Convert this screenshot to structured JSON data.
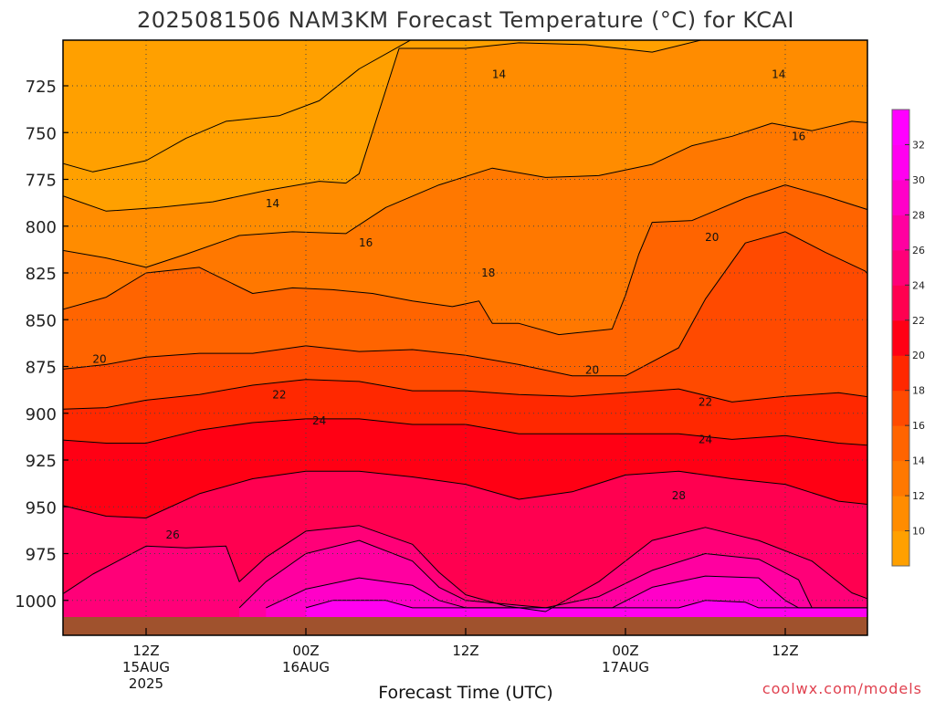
{
  "chart_data": {
    "type": "contour",
    "title": "2025081506 NAM3KM Forecast Temperature (°C) for KCAI",
    "xlabel": "Forecast Time (UTC)",
    "ylabel": "",
    "y_scale": "pressure (hPa), reversed",
    "ylim": [
      1025,
      700
    ],
    "y_ticks": [
      725,
      750,
      775,
      800,
      825,
      850,
      875,
      900,
      925,
      950,
      975,
      1000
    ],
    "x_ticks": [
      {
        "time": "12Z 15AUG 2025",
        "line1": "12Z",
        "line2": "15AUG",
        "line3": "2025"
      },
      {
        "time": "00Z 16AUG",
        "line1": "00Z",
        "line2": "16AUG",
        "line3": ""
      },
      {
        "time": "12Z 16AUG",
        "line1": "12Z",
        "line2": "",
        "line3": ""
      },
      {
        "time": "00Z 17AUG",
        "line1": "00Z",
        "line2": "17AUG",
        "line3": ""
      },
      {
        "time": "12Z 17AUG",
        "line1": "12Z",
        "line2": "",
        "line3": ""
      }
    ],
    "grid": true,
    "colorbar": {
      "ticks": [
        10,
        12,
        14,
        16,
        18,
        20,
        22,
        24,
        26,
        28,
        30,
        32
      ],
      "colors": [
        "#ffa000",
        "#ff8c00",
        "#ff7800",
        "#ff6400",
        "#ff4a00",
        "#ff2800",
        "#ff0014",
        "#ff0050",
        "#ff0078",
        "#ff00a0",
        "#ff00c8",
        "#ff00f0",
        "#ff00ff"
      ]
    },
    "contour_labels": [
      {
        "value": "14",
        "x_hours": 9.5,
        "pressure": 788
      },
      {
        "value": "14",
        "x_hours": 26.5,
        "pressure": 719
      },
      {
        "value": "14",
        "x_hours": 47.5,
        "pressure": 719
      },
      {
        "value": "16",
        "x_hours": 16.5,
        "pressure": 809
      },
      {
        "value": "16",
        "x_hours": 49,
        "pressure": 752
      },
      {
        "value": "18",
        "x_hours": 25.7,
        "pressure": 825
      },
      {
        "value": "20",
        "x_hours": -3.5,
        "pressure": 871
      },
      {
        "value": "20",
        "x_hours": 33.5,
        "pressure": 877
      },
      {
        "value": "20",
        "x_hours": 42.5,
        "pressure": 806
      },
      {
        "value": "22",
        "x_hours": 10,
        "pressure": 890
      },
      {
        "value": "22",
        "x_hours": 42,
        "pressure": 894
      },
      {
        "value": "24",
        "x_hours": 13,
        "pressure": 904
      },
      {
        "value": "24",
        "x_hours": 42,
        "pressure": 914
      },
      {
        "value": "26",
        "x_hours": 2,
        "pressure": 965
      },
      {
        "value": "28",
        "x_hours": 40,
        "pressure": 944
      }
    ],
    "series": [
      {
        "min_value": 10,
        "color": "#ffa000",
        "boundary": [
          [
            -7,
            700
          ],
          [
            -7,
            765
          ],
          [
            -4,
            771
          ],
          [
            0,
            765
          ],
          [
            3,
            753
          ],
          [
            6,
            744
          ],
          [
            10,
            741
          ],
          [
            13,
            733
          ],
          [
            16,
            716
          ],
          [
            20,
            700
          ]
        ]
      },
      {
        "min_value": 12,
        "color": "#ff8c00",
        "boundary": [
          [
            -7,
            700
          ],
          [
            -7,
            782
          ],
          [
            -3,
            792
          ],
          [
            1,
            790
          ],
          [
            5,
            787
          ],
          [
            9,
            781
          ],
          [
            13,
            776
          ],
          [
            15,
            777
          ],
          [
            16,
            772
          ],
          [
            19,
            705
          ],
          [
            24,
            705
          ],
          [
            28,
            702
          ],
          [
            33,
            703
          ],
          [
            38,
            707
          ],
          [
            42,
            700
          ]
        ]
      },
      {
        "min_value": 14,
        "color": "#ff7800",
        "boundary": [
          [
            -7,
            700
          ],
          [
            -7,
            812
          ],
          [
            -3,
            817
          ],
          [
            0,
            822
          ],
          [
            3,
            815
          ],
          [
            7,
            805
          ],
          [
            11,
            803
          ],
          [
            15,
            804
          ],
          [
            18,
            790
          ],
          [
            22,
            778
          ],
          [
            26,
            769
          ],
          [
            30,
            774
          ],
          [
            34,
            773
          ],
          [
            38,
            767
          ],
          [
            41,
            757
          ],
          [
            44,
            752
          ],
          [
            47,
            745
          ],
          [
            50,
            749
          ],
          [
            53,
            744
          ],
          [
            56,
            746
          ],
          [
            58,
            770
          ],
          [
            62,
            773
          ],
          [
            63,
            700
          ]
        ]
      },
      {
        "min_value": 16,
        "color": "#ff6400",
        "boundary": [
          [
            -7,
            700
          ],
          [
            -7,
            846
          ],
          [
            -3,
            838
          ],
          [
            0,
            825
          ],
          [
            4,
            822
          ],
          [
            8,
            836
          ],
          [
            11,
            833
          ],
          [
            14,
            834
          ],
          [
            17,
            836
          ],
          [
            20,
            840
          ],
          [
            23,
            843
          ],
          [
            25,
            840
          ],
          [
            26,
            852
          ],
          [
            28,
            852
          ],
          [
            31,
            858
          ],
          [
            35,
            855
          ],
          [
            36,
            837
          ],
          [
            37,
            815
          ],
          [
            38,
            798
          ],
          [
            41,
            797
          ],
          [
            45,
            785
          ],
          [
            48,
            778
          ],
          [
            51,
            784
          ],
          [
            55,
            793
          ],
          [
            58,
            805
          ],
          [
            60,
            815
          ],
          [
            63,
            805
          ],
          [
            63,
            700
          ]
        ]
      },
      {
        "min_value": 18,
        "color": "#ff4a00",
        "boundary": [
          [
            -7,
            700
          ],
          [
            -7,
            877
          ],
          [
            -3,
            874
          ],
          [
            0,
            870
          ],
          [
            4,
            868
          ],
          [
            8,
            868
          ],
          [
            12,
            864
          ],
          [
            16,
            867
          ],
          [
            20,
            866
          ],
          [
            24,
            869
          ],
          [
            28,
            874
          ],
          [
            32,
            880
          ],
          [
            36,
            880
          ],
          [
            40,
            865
          ],
          [
            42,
            839
          ],
          [
            45,
            809
          ],
          [
            48,
            803
          ],
          [
            51,
            814
          ],
          [
            54,
            824
          ],
          [
            56,
            842
          ],
          [
            57,
            868
          ],
          [
            60,
            876
          ],
          [
            63,
            875
          ],
          [
            63,
            700
          ]
        ]
      },
      {
        "min_value": 20,
        "color": "#ff2800",
        "boundary": [
          [
            -7,
            700
          ],
          [
            -7,
            898
          ],
          [
            -3,
            897
          ],
          [
            0,
            893
          ],
          [
            4,
            890
          ],
          [
            8,
            885
          ],
          [
            12,
            882
          ],
          [
            16,
            883
          ],
          [
            20,
            888
          ],
          [
            24,
            888
          ],
          [
            28,
            890
          ],
          [
            32,
            891
          ],
          [
            36,
            889
          ],
          [
            40,
            887
          ],
          [
            44,
            894
          ],
          [
            48,
            891
          ],
          [
            52,
            889
          ],
          [
            56,
            893
          ],
          [
            60,
            898
          ],
          [
            63,
            894
          ],
          [
            63,
            700
          ]
        ]
      },
      {
        "min_value": 22,
        "color": "#ff0014",
        "boundary": [
          [
            -7,
            700
          ],
          [
            -7,
            914
          ],
          [
            -3,
            916
          ],
          [
            0,
            916
          ],
          [
            4,
            909
          ],
          [
            8,
            905
          ],
          [
            12,
            903
          ],
          [
            16,
            903
          ],
          [
            20,
            906
          ],
          [
            24,
            906
          ],
          [
            28,
            911
          ],
          [
            32,
            911
          ],
          [
            36,
            911
          ],
          [
            40,
            911
          ],
          [
            44,
            914
          ],
          [
            48,
            912
          ],
          [
            52,
            916
          ],
          [
            56,
            918
          ],
          [
            60,
            920
          ],
          [
            63,
            914
          ],
          [
            63,
            700
          ]
        ]
      },
      {
        "min_value": 24,
        "color": "#ff0050",
        "boundary": [
          [
            -7,
            700
          ],
          [
            -7,
            948
          ],
          [
            -3,
            955
          ],
          [
            0,
            956
          ],
          [
            4,
            943
          ],
          [
            8,
            935
          ],
          [
            12,
            931
          ],
          [
            16,
            931
          ],
          [
            20,
            934
          ],
          [
            24,
            938
          ],
          [
            28,
            946
          ],
          [
            32,
            942
          ],
          [
            36,
            933
          ],
          [
            40,
            931
          ],
          [
            44,
            935
          ],
          [
            48,
            938
          ],
          [
            52,
            947
          ],
          [
            56,
            950
          ],
          [
            60,
            948
          ],
          [
            63,
            945
          ],
          [
            63,
            700
          ]
        ]
      },
      {
        "min_value": 26,
        "color": "#ff0078",
        "boundary": [
          [
            -7,
            1000
          ],
          [
            -4,
            986
          ],
          [
            0,
            971
          ],
          [
            3,
            972
          ],
          [
            6,
            971
          ],
          [
            7,
            990
          ],
          [
            9,
            977
          ],
          [
            12,
            963
          ],
          [
            16,
            960
          ],
          [
            20,
            970
          ],
          [
            22,
            985
          ],
          [
            24,
            997
          ],
          [
            27,
            1003
          ],
          [
            30,
            1006
          ],
          [
            34,
            990
          ],
          [
            38,
            968
          ],
          [
            42,
            961
          ],
          [
            46,
            968
          ],
          [
            50,
            979
          ],
          [
            53,
            996
          ],
          [
            56,
            1004
          ],
          [
            60,
            999
          ],
          [
            63,
            985
          ],
          [
            63,
            1004
          ]
        ]
      },
      {
        "min_value": 28,
        "color": "#ff00a0",
        "boundary": [
          [
            7,
            1004
          ],
          [
            9,
            990
          ],
          [
            12,
            975
          ],
          [
            16,
            968
          ],
          [
            20,
            979
          ],
          [
            22,
            993
          ],
          [
            24,
            1000
          ],
          [
            30,
            1004
          ],
          [
            34,
            998
          ],
          [
            38,
            984
          ],
          [
            42,
            975
          ],
          [
            46,
            978
          ],
          [
            49,
            989
          ],
          [
            50,
            1004
          ]
        ]
      },
      {
        "min_value": 30,
        "color": "#ff00c8",
        "boundary": [
          [
            9,
            1004
          ],
          [
            12,
            994
          ],
          [
            16,
            988
          ],
          [
            20,
            992
          ],
          [
            22,
            1000
          ],
          [
            24,
            1004
          ],
          [
            35,
            1004
          ],
          [
            38,
            993
          ],
          [
            42,
            987
          ],
          [
            46,
            988
          ],
          [
            48,
            1000
          ],
          [
            49,
            1004
          ],
          [
            60,
            1004
          ],
          [
            62,
            990
          ],
          [
            63,
            980
          ],
          [
            63,
            1004
          ]
        ]
      },
      {
        "min_value": 32,
        "color": "#ff00f0",
        "boundary": [
          [
            12,
            1004
          ],
          [
            14,
            1000
          ],
          [
            18,
            1000
          ],
          [
            20,
            1004
          ],
          [
            40,
            1004
          ],
          [
            42,
            1000
          ],
          [
            45,
            1001
          ],
          [
            46,
            1004
          ],
          [
            61,
            1004
          ],
          [
            62,
            996
          ],
          [
            63,
            993
          ],
          [
            63,
            1004
          ]
        ]
      }
    ]
  },
  "footer": {
    "credit": "coolwx.com/models"
  }
}
